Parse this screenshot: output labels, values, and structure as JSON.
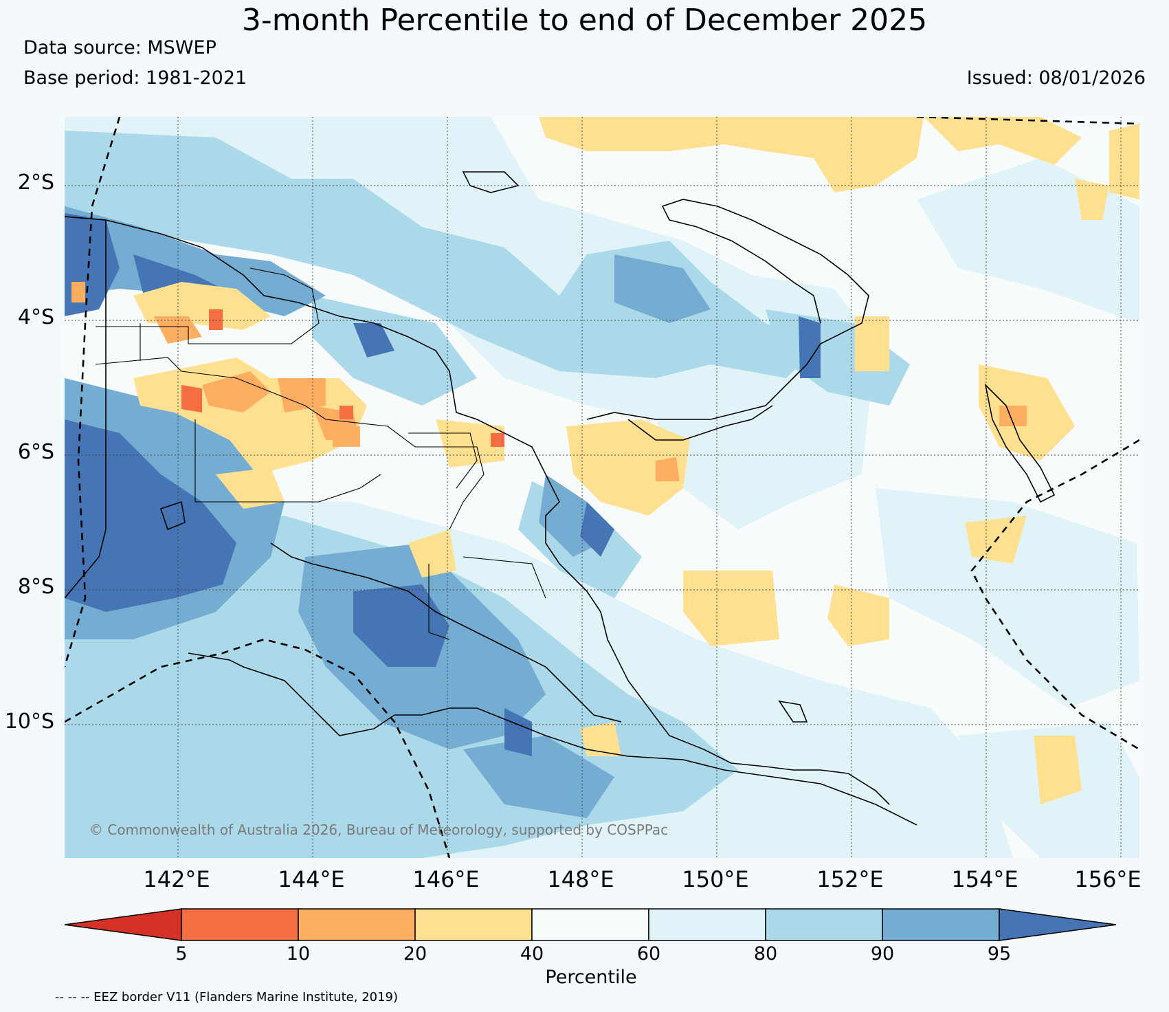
{
  "title": "3-month Percentile to end of December 2025",
  "data_source": "Data source: MSWEP",
  "base_period": "Base period: 1981-2021",
  "issued": "Issued: 08/01/2026",
  "copyright": "© Commonwealth of Australia 2026, Bureau of Meteorology, supported by COSPPac",
  "lat_labels": [
    "2°S",
    "4°S",
    "6°S",
    "8°S",
    "10°S"
  ],
  "lon_labels": [
    "142°E",
    "144°E",
    "146°E",
    "148°E",
    "150°E",
    "152°E",
    "154°E",
    "156°E"
  ],
  "colorbar": {
    "label": "Percentile",
    "ticks": [
      "5",
      "10",
      "20",
      "40",
      "60",
      "80",
      "90",
      "95"
    ],
    "colors": [
      "#d73027",
      "#f46d43",
      "#fdae61",
      "#fee090",
      "#f7fbfc",
      "#e0f3f8",
      "#abd9e9",
      "#74add1",
      "#4575b4"
    ]
  },
  "legend_note": "-- -- -- EEZ border V11 (Flanders Marine Institute, 2019)"
}
